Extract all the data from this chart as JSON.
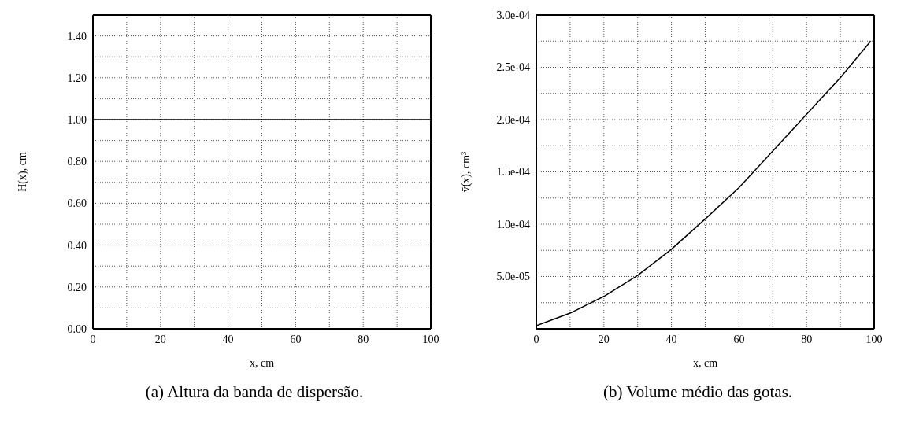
{
  "chart_data": [
    {
      "type": "line",
      "xlabel": "x, cm",
      "ylabel": "H(x), cm",
      "annotations": [
        "(a) Altura da banda de dispersão."
      ],
      "x": [
        0,
        10,
        20,
        30,
        40,
        50,
        60,
        70,
        80,
        90,
        100
      ],
      "color": "#000000",
      "values": [
        1,
        1,
        1,
        1,
        1,
        1,
        1,
        1,
        1,
        1,
        1
      ],
      "xlim": [
        0,
        100
      ],
      "ylim": [
        0,
        1.5
      ],
      "xticks": [
        0,
        {
          "value": 10,
          "label": null
        },
        20,
        {
          "value": 30,
          "label": null
        },
        40,
        {
          "value": 50,
          "label": null
        },
        60,
        {
          "value": 70,
          "label": null
        },
        80,
        {
          "value": 90,
          "label": null
        },
        100
      ],
      "yticks": [
        {
          "value": 0,
          "label": "0.00"
        },
        {
          "value": 0.1,
          "label": null
        },
        {
          "value": 0.2,
          "label": "0.20"
        },
        {
          "value": 0.3,
          "label": null
        },
        {
          "value": 0.4,
          "label": "0.40"
        },
        {
          "value": 0.5,
          "label": null
        },
        {
          "value": 0.6,
          "label": "0.60"
        },
        {
          "value": 0.7,
          "label": null
        },
        {
          "value": 0.8,
          "label": "0.80"
        },
        {
          "value": 0.9,
          "label": null
        },
        {
          "value": 1,
          "label": "1.00"
        },
        {
          "value": 1.1,
          "label": null
        },
        {
          "value": 1.2,
          "label": "1.20"
        },
        {
          "value": 1.3,
          "label": null
        },
        {
          "value": 1.4,
          "label": "1.40"
        }
      ],
      "grid": true,
      "marker": "none"
    },
    {
      "type": "line",
      "xlabel": "x, cm",
      "ylabel": "v̄(x), cm³",
      "annotations": [
        "(b) Volume médio das gotas."
      ],
      "x": [
        0,
        5,
        10,
        20,
        30,
        40,
        50,
        60,
        70,
        80,
        90,
        99
      ],
      "color": "#000000",
      "values": [
        3e-06,
        9e-06,
        1.5e-05,
        3.1e-05,
        5.1e-05,
        7.6e-05,
        0.000105,
        0.000135,
        0.00017,
        0.000205,
        0.00024,
        0.000275
      ],
      "xlim": [
        0,
        100
      ],
      "ylim": [
        0,
        0.0003
      ],
      "xticks": [
        0,
        {
          "value": 10,
          "label": null
        },
        20,
        {
          "value": 30,
          "label": null
        },
        40,
        {
          "value": 50,
          "label": null
        },
        60,
        {
          "value": 70,
          "label": null
        },
        80,
        {
          "value": 90,
          "label": null
        },
        100
      ],
      "yticks": [
        {
          "value": 2.5e-05,
          "label": null
        },
        {
          "value": 5e-05,
          "label": "5.0e-05"
        },
        {
          "value": 7.5e-05,
          "label": null
        },
        {
          "value": 0.0001,
          "label": "1.0e-04"
        },
        {
          "value": 0.000125,
          "label": null
        },
        {
          "value": 0.00015,
          "label": "1.5e-04"
        },
        {
          "value": 0.000175,
          "label": null
        },
        {
          "value": 0.0002,
          "label": "2.0e-04"
        },
        {
          "value": 0.000225,
          "label": null
        },
        {
          "value": 0.00025,
          "label": "2.5e-04"
        },
        {
          "value": 0.000275,
          "label": null
        },
        {
          "value": 0.0003,
          "label": "3.0e-04"
        }
      ],
      "grid": true,
      "marker": "none"
    }
  ]
}
